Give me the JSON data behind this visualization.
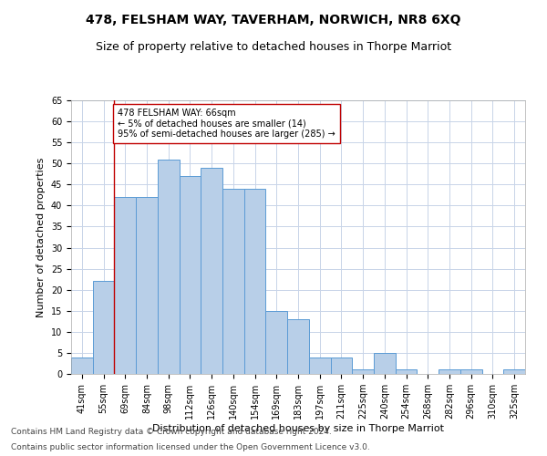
{
  "title": "478, FELSHAM WAY, TAVERHAM, NORWICH, NR8 6XQ",
  "subtitle": "Size of property relative to detached houses in Thorpe Marriot",
  "xlabel": "Distribution of detached houses by size in Thorpe Marriot",
  "ylabel": "Number of detached properties",
  "categories": [
    "41sqm",
    "55sqm",
    "69sqm",
    "84sqm",
    "98sqm",
    "112sqm",
    "126sqm",
    "140sqm",
    "154sqm",
    "169sqm",
    "183sqm",
    "197sqm",
    "211sqm",
    "225sqm",
    "240sqm",
    "254sqm",
    "268sqm",
    "282sqm",
    "296sqm",
    "310sqm",
    "325sqm"
  ],
  "values": [
    4,
    22,
    42,
    42,
    51,
    47,
    49,
    44,
    44,
    15,
    13,
    4,
    4,
    1,
    5,
    1,
    0,
    1,
    1,
    0,
    1
  ],
  "bar_color": "#b8cfe8",
  "bar_edge_color": "#5b9bd5",
  "annotation_text_line1": "478 FELSHAM WAY: 66sqm",
  "annotation_text_line2": "← 5% of detached houses are smaller (14)",
  "annotation_text_line3": "95% of semi-detached houses are larger (285) →",
  "vline_color": "#c00000",
  "vline_x": 1.5,
  "ylim": [
    0,
    65
  ],
  "yticks": [
    0,
    5,
    10,
    15,
    20,
    25,
    30,
    35,
    40,
    45,
    50,
    55,
    60,
    65
  ],
  "footer_line1": "Contains HM Land Registry data © Crown copyright and database right 2024.",
  "footer_line2": "Contains public sector information licensed under the Open Government Licence v3.0.",
  "background_color": "#ffffff",
  "grid_color": "#c8d4e8",
  "title_fontsize": 10,
  "subtitle_fontsize": 9,
  "axis_label_fontsize": 8,
  "tick_fontsize": 7,
  "annotation_fontsize": 7,
  "footer_fontsize": 6.5
}
